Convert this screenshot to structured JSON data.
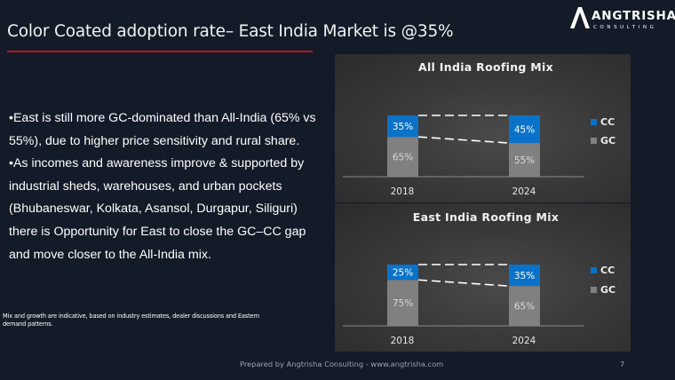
{
  "slide": {
    "title": "Color Coated adoption rate– East India Market is @35%",
    "accent_color": "#c0121b",
    "logo": {
      "name": "ANGTRISHA",
      "subtitle": "CONSULTING"
    },
    "bullets": [
      "•East is still more GC-dominated than All-India (65% vs 55%), due to higher price sensitivity and rural share.",
      "•As incomes and awareness improve & supported by industrial sheds, warehouses, and urban pockets (Bhubaneswar, Kolkata, Asansol, Durgapur, Siliguri) there is Opportunity for East to close the GC–CC gap and move closer to the All-India mix."
    ],
    "footnote": "Mix and growth are indicative, based on industry estimates, dealer discussions and Eastern demand patterns.",
    "footer": "Prepared by Angtrisha Consulting - www.angtrisha.com",
    "page_number": "7"
  },
  "chart_data": [
    {
      "type": "bar",
      "stacked": true,
      "title": "All India Roofing Mix",
      "categories": [
        "2018",
        "2024"
      ],
      "series": [
        {
          "name": "GC",
          "values": [
            65,
            55
          ],
          "labels": [
            "65%",
            "55%"
          ],
          "color": "#808080"
        },
        {
          "name": "CC",
          "values": [
            35,
            45
          ],
          "labels": [
            "35%",
            "45%"
          ],
          "color": "#0a72c8"
        }
      ],
      "legend": [
        "CC",
        "GC"
      ],
      "legend_position": "right",
      "ylim": [
        0,
        100
      ],
      "series_lines": true
    },
    {
      "type": "bar",
      "stacked": true,
      "title": "East India Roofing Mix",
      "categories": [
        "2018",
        "2024"
      ],
      "series": [
        {
          "name": "GC",
          "values": [
            75,
            65
          ],
          "labels": [
            "75%",
            "65%"
          ],
          "color": "#808080"
        },
        {
          "name": "CC",
          "values": [
            25,
            35
          ],
          "labels": [
            "25%",
            "35%"
          ],
          "color": "#0a72c8"
        }
      ],
      "legend": [
        "CC",
        "GC"
      ],
      "legend_position": "right",
      "ylim": [
        0,
        100
      ],
      "series_lines": true
    }
  ]
}
